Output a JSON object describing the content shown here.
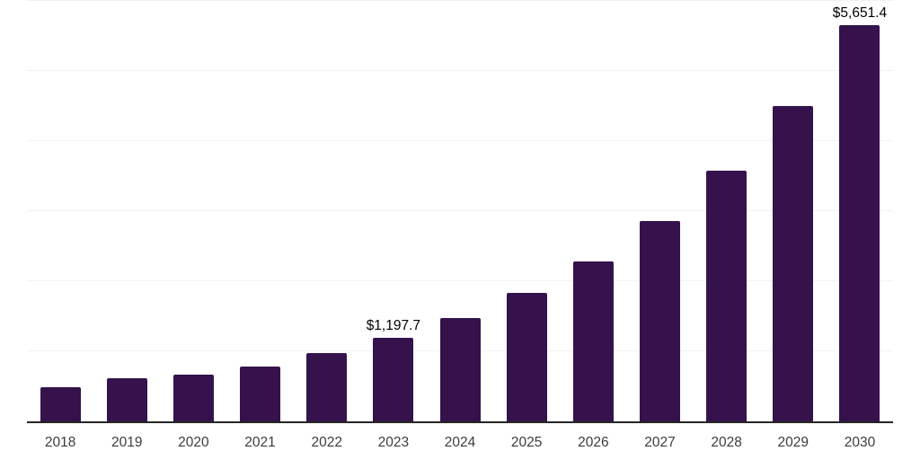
{
  "chart_data": {
    "type": "bar",
    "title": "",
    "xlabel": "",
    "ylabel": "",
    "categories": [
      "2018",
      "2019",
      "2020",
      "2021",
      "2022",
      "2023",
      "2024",
      "2025",
      "2026",
      "2027",
      "2028",
      "2029",
      "2030"
    ],
    "values": [
      490,
      610,
      667,
      782,
      974,
      1197.7,
      1478,
      1833,
      2277,
      2863,
      3581,
      4500,
      5651.4
    ],
    "data_labels": {
      "2023": "$1,197.7",
      "2030": "$5,651.4"
    },
    "ylim": [
      0,
      6000
    ],
    "gridline_step": 1000,
    "grid": true,
    "legend": false,
    "colors": {
      "bar": "#35124b",
      "axis_line": "#262626",
      "gridline": "#f2f2f2",
      "tick_label": "#3d3d3d",
      "data_label": "#000000"
    }
  }
}
